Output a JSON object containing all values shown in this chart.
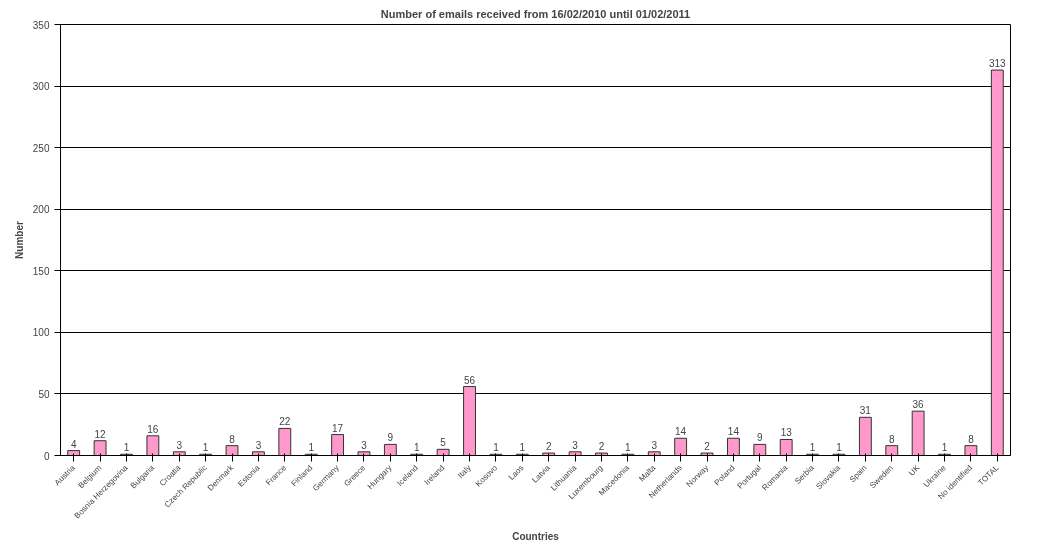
{
  "chart_data": {
    "type": "bar",
    "title": "Number of emails received from 16/02/2010 until 01/02/2011",
    "xlabel": "Countries",
    "ylabel": "Number",
    "categories": [
      "Austria",
      "Belgium",
      "Bosnia Herzegovina",
      "Bulgaria",
      "Croatia",
      "Czech Republic",
      "Denmark",
      "Estonia",
      "France",
      "Finland",
      "Germany",
      "Greece",
      "Hungary",
      "Iceland",
      "Ireland",
      "Italy",
      "Kosovo",
      "Laos",
      "Latvia",
      "Lithuania",
      "Luxembourg",
      "Macedonia",
      "Malta",
      "Netherlands",
      "Norway",
      "Poland",
      "Portugal",
      "Romania",
      "Serbia",
      "Slovakia",
      "Spain",
      "Sweden",
      "UK",
      "Ukraine",
      "No identified",
      "TOTAL"
    ],
    "values": [
      4,
      12,
      1,
      16,
      3,
      1,
      8,
      3,
      22,
      1,
      17,
      3,
      9,
      1,
      5,
      56,
      1,
      1,
      2,
      3,
      2,
      1,
      3,
      14,
      2,
      14,
      9,
      13,
      1,
      1,
      31,
      8,
      36,
      1,
      8,
      313
    ],
    "color": "#ff99cc",
    "ylim": [
      0,
      350
    ],
    "yticks": [
      0,
      50,
      100,
      150,
      200,
      250,
      300,
      350
    ],
    "grid": "y",
    "data_labels": true
  }
}
